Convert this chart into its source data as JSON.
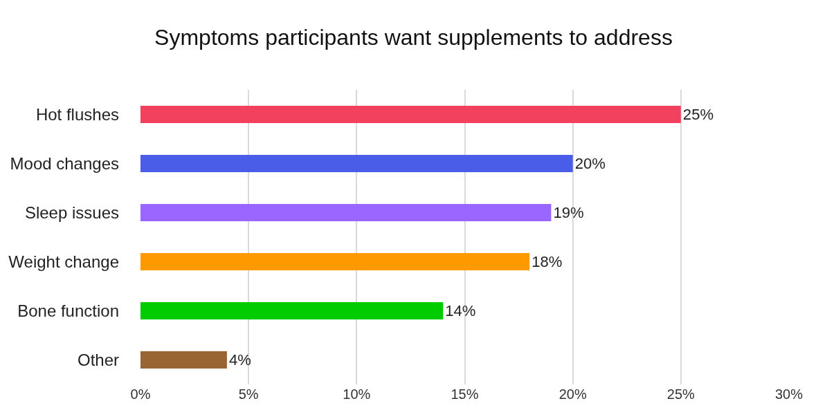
{
  "chart_data": {
    "type": "bar",
    "orientation": "horizontal",
    "title": "Symptoms participants want supplements to address",
    "categories": [
      "Hot flushes",
      "Mood changes",
      "Sleep issues",
      "Weight change",
      "Bone function",
      "Other"
    ],
    "values": [
      25,
      20,
      19,
      18,
      14,
      4
    ],
    "colors": [
      "#f2405f",
      "#4a5de8",
      "#9966ff",
      "#ff9900",
      "#00cc00",
      "#996633"
    ],
    "value_labels": [
      "25%",
      "20%",
      "19%",
      "18%",
      "14%",
      "4%"
    ],
    "xlim": [
      0,
      30
    ],
    "xticks": [
      {
        "value": 0,
        "label": "0%"
      },
      {
        "value": 5,
        "label": "5%"
      },
      {
        "value": 10,
        "label": "10%"
      },
      {
        "value": 15,
        "label": "15%"
      },
      {
        "value": 20,
        "label": "20%"
      },
      {
        "value": 25,
        "label": "25%"
      },
      {
        "value": 30,
        "label": "30%"
      }
    ],
    "grid": "x",
    "legend": false
  }
}
